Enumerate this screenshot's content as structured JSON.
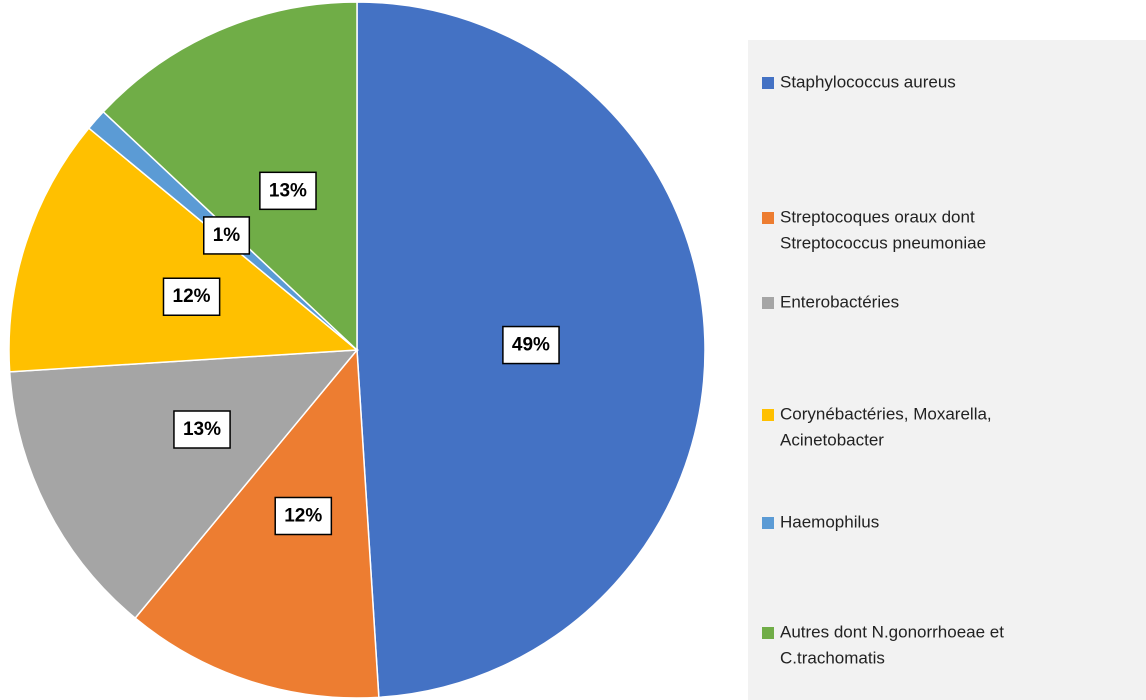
{
  "chart_data": {
    "type": "pie",
    "categories": [
      "Staphylococcus aureus",
      "Streptocoques oraux dont Streptococcus pneumoniae",
      "Enterobactéries",
      "Corynébactéries, Moxarella, Acinetobacter",
      "Haemophilus",
      "Autres dont N.gonorrhoeae et C.trachomatis"
    ],
    "legend_lines": [
      [
        "Staphylococcus aureus"
      ],
      [
        "Streptocoques oraux dont",
        "Streptococcus pneumoniae"
      ],
      [
        "Enterobactéries"
      ],
      [
        "Corynébactéries, Moxarella,",
        "Acinetobacter"
      ],
      [
        "Haemophilus"
      ],
      [
        "Autres dont N.gonorrhoeae et",
        "C.trachomatis"
      ]
    ],
    "values": [
      49,
      12,
      13,
      12,
      1,
      13
    ],
    "value_labels": [
      "49%",
      "12%",
      "13%",
      "12%",
      "1%",
      "13%"
    ],
    "colors": [
      "#4472c4",
      "#ed7d31",
      "#a5a5a5",
      "#ffc000",
      "#5b9bd5",
      "#70ad47"
    ],
    "legend": "right"
  }
}
